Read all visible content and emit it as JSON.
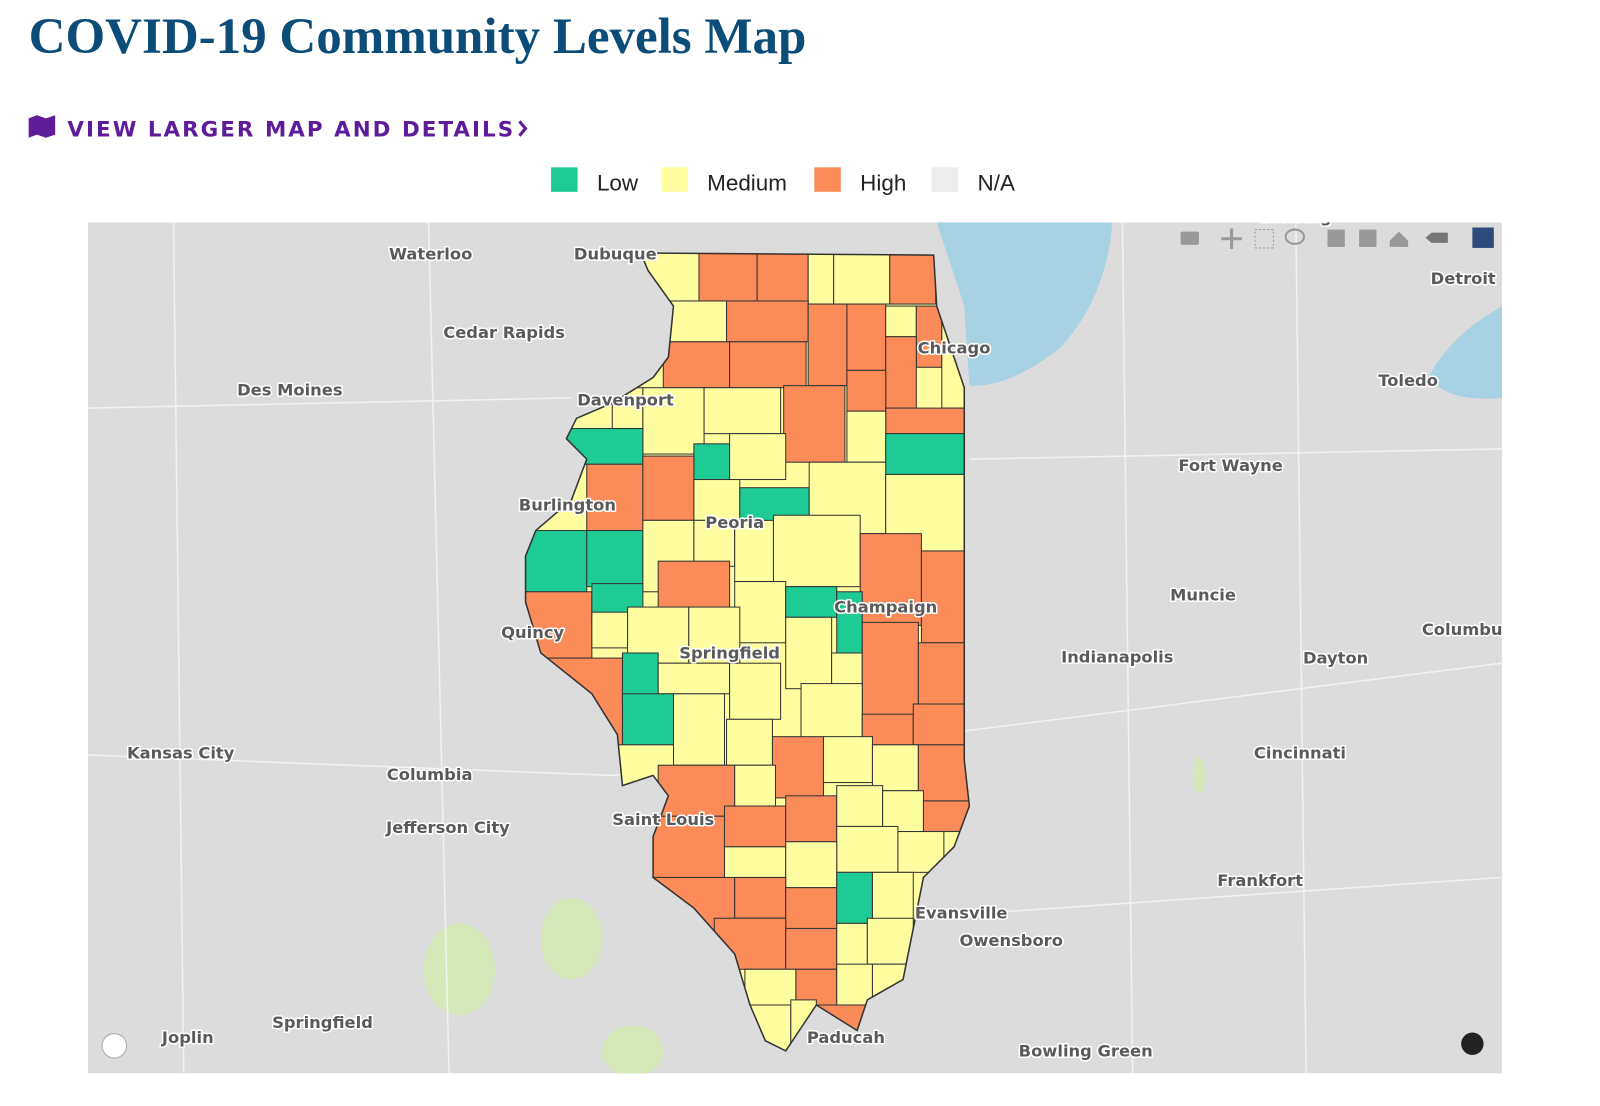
{
  "header": {
    "title": "COVID-19 Community Levels Map"
  },
  "link": {
    "text": "VIEW LARGER MAP AND DETAILS"
  },
  "legend": [
    {
      "label": "Low",
      "color": "#1ecb95"
    },
    {
      "label": "Medium",
      "color": "#fefea0"
    },
    {
      "label": "High",
      "color": "#fb8b58"
    },
    {
      "label": "N/A",
      "color": "#ececec"
    }
  ],
  "map": {
    "cities": [
      "Waterloo",
      "Dubuque",
      "Cedar Rapids",
      "Des Moines",
      "Davenport",
      "Chicago",
      "Lansing",
      "Detroit",
      "Toledo",
      "Fort Wayne",
      "Burlington",
      "Peoria",
      "Muncie",
      "Champaign",
      "Quincy",
      "Springfield",
      "Indianapolis",
      "Dayton",
      "Columbu",
      "Kansas City",
      "Columbia",
      "Cincinnati",
      "Jefferson City",
      "Saint Louis",
      "Frankfort",
      "Evansville",
      "Owensboro",
      "Springfield",
      "Joplin",
      "Paducah",
      "Bowling Green"
    ]
  }
}
